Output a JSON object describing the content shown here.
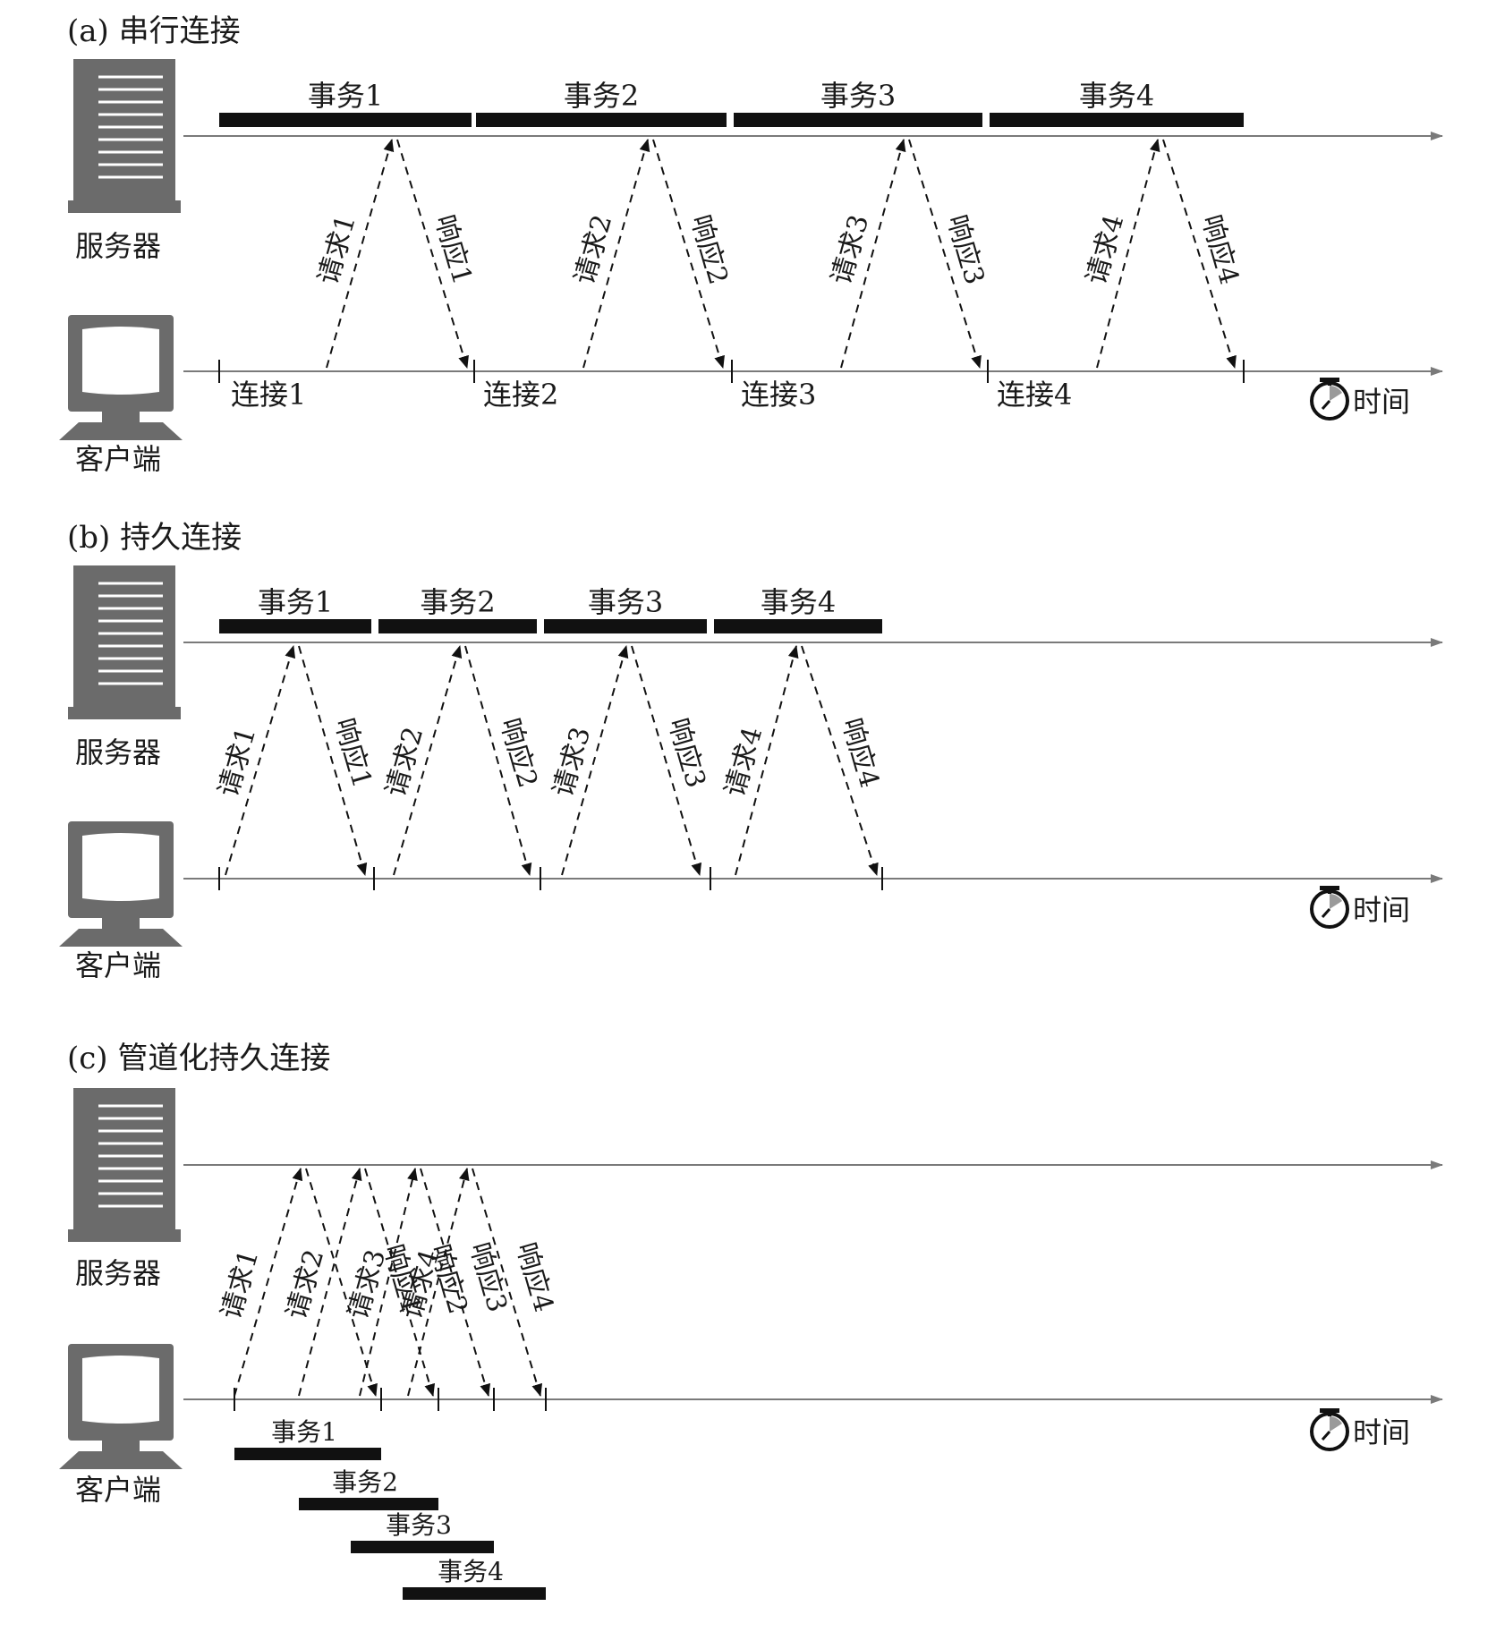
{
  "colors": {
    "line": "#7a7a7a",
    "bar": "#111111",
    "server": "#6b6b6b",
    "text": "#1a1a1a"
  },
  "labels": {
    "server": "服务器",
    "client": "客户端",
    "time": "时间"
  },
  "panels": [
    {
      "id": "a",
      "title": "(a) 串行连接",
      "mode": "serial",
      "transactions": [
        "事务1",
        "事务2",
        "事务3",
        "事务4"
      ],
      "requests": [
        "请求1",
        "请求2",
        "请求3",
        "请求4"
      ],
      "responses": [
        "响应1",
        "响应2",
        "响应3",
        "响应4"
      ],
      "connections": [
        "连接1",
        "连接2",
        "连接3",
        "连接4"
      ]
    },
    {
      "id": "b",
      "title": "(b) 持久连接",
      "mode": "persistent",
      "transactions": [
        "事务1",
        "事务2",
        "事务3",
        "事务4"
      ],
      "requests": [
        "请求1",
        "请求2",
        "请求3",
        "请求4"
      ],
      "responses": [
        "响应1",
        "响应2",
        "响应3",
        "响应4"
      ],
      "connections": []
    },
    {
      "id": "c",
      "title": "(c) 管道化持久连接",
      "mode": "pipelined",
      "transactions": [
        "事务1",
        "事务2",
        "事务3",
        "事务4"
      ],
      "requests": [
        "请求1",
        "请求2",
        "请求3",
        "请求4"
      ],
      "responses": [
        "响应1",
        "响应2",
        "响应3",
        "响应4"
      ],
      "connections": []
    }
  ]
}
